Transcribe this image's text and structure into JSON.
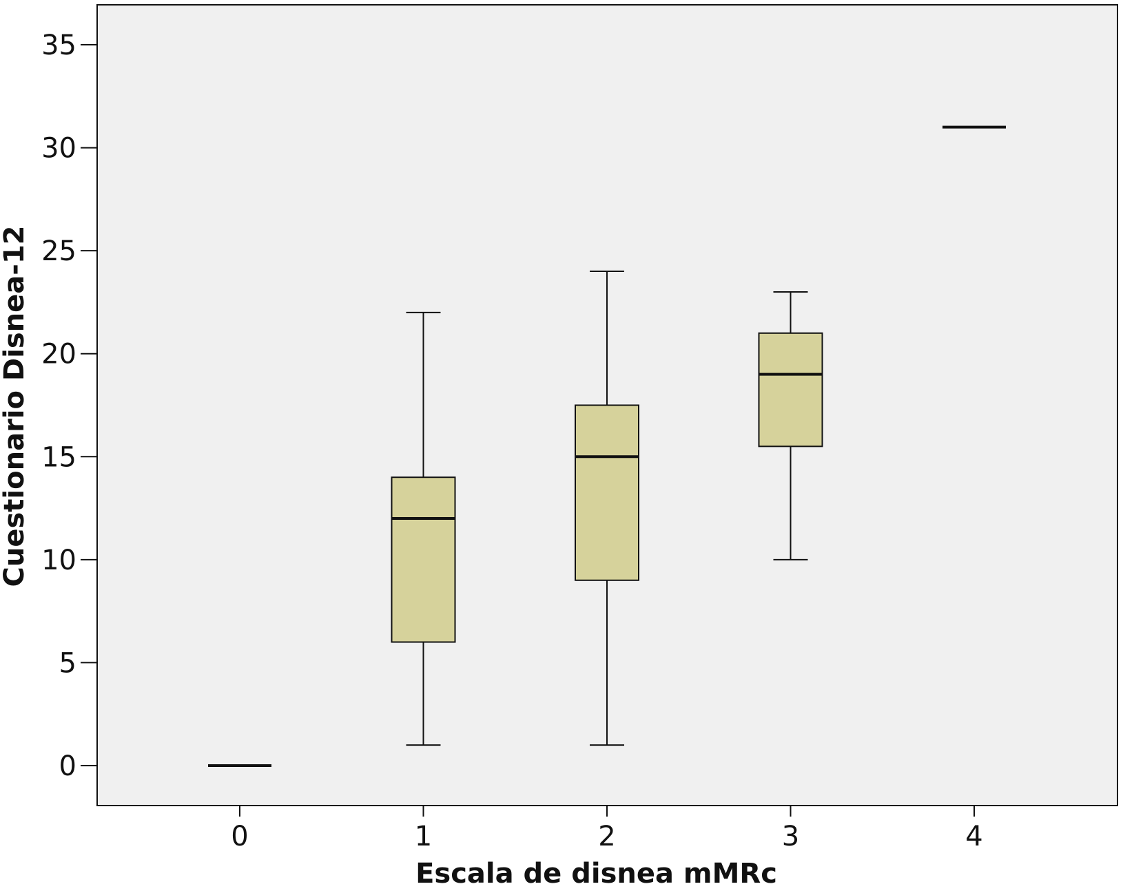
{
  "chart_data": {
    "type": "boxplot",
    "xlabel": "Escala de disnea mMRc",
    "ylabel": "Cuestionario Disnea-12",
    "categories": [
      "0",
      "1",
      "2",
      "3",
      "4"
    ],
    "ylim": [
      -2,
      37
    ],
    "yticks": [
      0,
      5,
      10,
      15,
      20,
      25,
      30,
      35
    ],
    "ytick_labels": [
      "0",
      "5",
      "10",
      "15",
      "20",
      "25",
      "30",
      "35"
    ],
    "boxes": [
      {
        "category": "0",
        "min": 0,
        "q1": 0,
        "median": 0,
        "q3": 0,
        "max": 0
      },
      {
        "category": "1",
        "min": 1,
        "q1": 6,
        "median": 12,
        "q3": 14,
        "max": 22
      },
      {
        "category": "2",
        "min": 1,
        "q1": 9,
        "median": 15,
        "q3": 17.5,
        "max": 24
      },
      {
        "category": "3",
        "min": 10,
        "q1": 15.5,
        "median": 19,
        "q3": 21,
        "max": 23
      },
      {
        "category": "4",
        "min": 31,
        "q1": 31,
        "median": 31,
        "q3": 31,
        "max": 31
      }
    ],
    "grid": false,
    "legend": "none",
    "colors": {
      "plot_background": "#f0f0f0",
      "box_fill": "#d6d29b",
      "stroke": "#111111"
    }
  }
}
